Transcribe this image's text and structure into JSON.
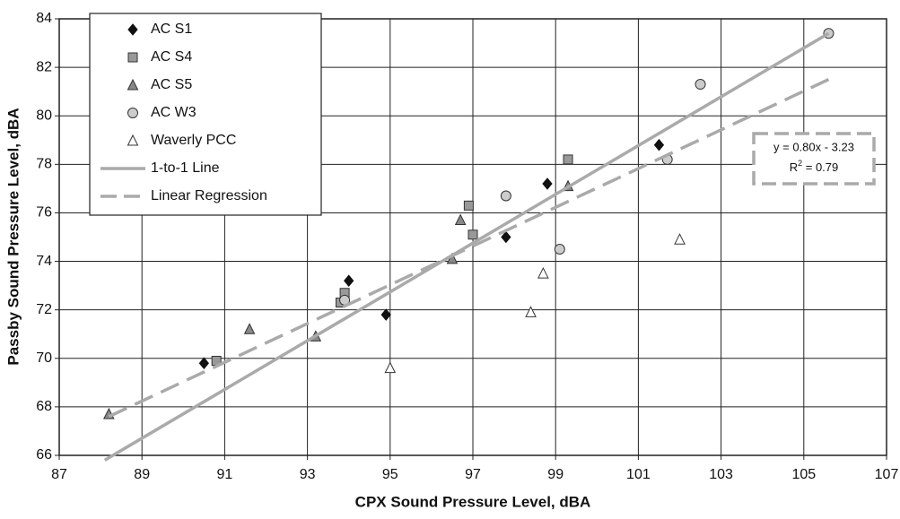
{
  "chart_data": {
    "type": "scatter",
    "x_label": "CPX Sound Pressure Level, dBA",
    "y_label": "Passby Sound Pressure Level, dBA",
    "xlim": [
      87,
      107
    ],
    "xticks": [
      87,
      89,
      91,
      93,
      95,
      97,
      99,
      101,
      103,
      105,
      107
    ],
    "ylim": [
      66,
      84
    ],
    "yticks": [
      66,
      68,
      70,
      72,
      74,
      76,
      78,
      80,
      82,
      84
    ],
    "grid": true,
    "legend": "upper left",
    "series": [
      {
        "name": "AC S1",
        "marker": "diamond",
        "color": "#111111",
        "x": [
          90.5,
          94,
          94.9,
          97.8,
          98.8,
          101.5
        ],
        "values": [
          69.8,
          73.2,
          71.8,
          75,
          77.2,
          78.8
        ]
      },
      {
        "name": "AC S4",
        "marker": "square",
        "color": "#999999",
        "x": [
          90.8,
          93.8,
          93.9,
          96.9,
          97,
          99.3
        ],
        "values": [
          69.9,
          72.3,
          72.7,
          76.3,
          75.1,
          78.2
        ]
      },
      {
        "name": "AC S5",
        "marker": "triangle",
        "color": "#888888",
        "x": [
          88.2,
          91.6,
          93.2,
          96.5,
          96.7,
          99.3
        ],
        "values": [
          67.7,
          71.2,
          70.9,
          74.1,
          75.7,
          77.1
        ]
      },
      {
        "name": "AC W3",
        "marker": "circle",
        "color": "#cccccc",
        "x": [
          93.9,
          97.8,
          99.1,
          101.7,
          102.5,
          105.6
        ],
        "values": [
          72.4,
          76.7,
          74.5,
          78.2,
          81.3,
          83.4
        ]
      },
      {
        "name": "Waverly PCC",
        "marker": "triangle",
        "color": "#ffffff",
        "x": [
          95,
          98.4,
          98.7,
          102
        ],
        "values": [
          69.6,
          71.9,
          73.5,
          74.9
        ]
      },
      {
        "name": "1-to-1 Line",
        "marker": "line",
        "color": "#aaaaaa",
        "x": [
          88.1,
          105.6
        ],
        "values": [
          65.8,
          83.4
        ]
      },
      {
        "name": "Linear Regression",
        "marker": "dashed",
        "color": "#aaaaaa",
        "x": [
          88.2,
          105.6
        ],
        "values": [
          67.6,
          81.5
        ]
      }
    ],
    "annotation": {
      "line1": "y = 0.80x - 3.23",
      "base": "R",
      "sup": "2",
      "rest": " = 0.79"
    }
  }
}
